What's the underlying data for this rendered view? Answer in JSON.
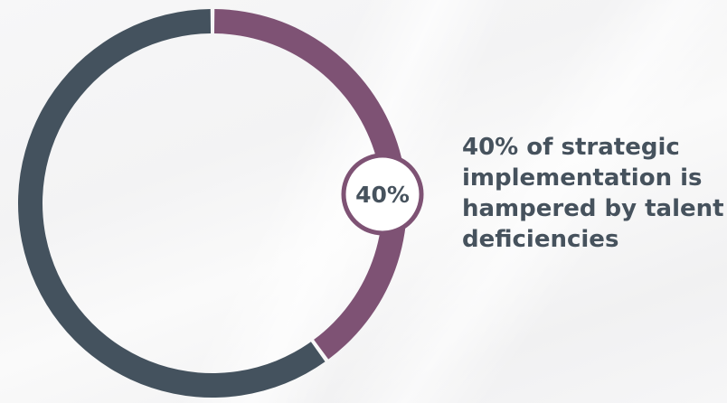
{
  "chart_data": {
    "type": "pie",
    "variant": "donut",
    "slices": [
      {
        "value": 40,
        "color": "#7e5274"
      },
      {
        "value": 60,
        "color": "#44525e"
      }
    ],
    "center_label": "40%",
    "caption": "40% of strategic implementation is hampered by talent deficiencies"
  },
  "colors": {
    "accent": "#7e5274",
    "base": "#44525e",
    "text": "#46525d"
  }
}
